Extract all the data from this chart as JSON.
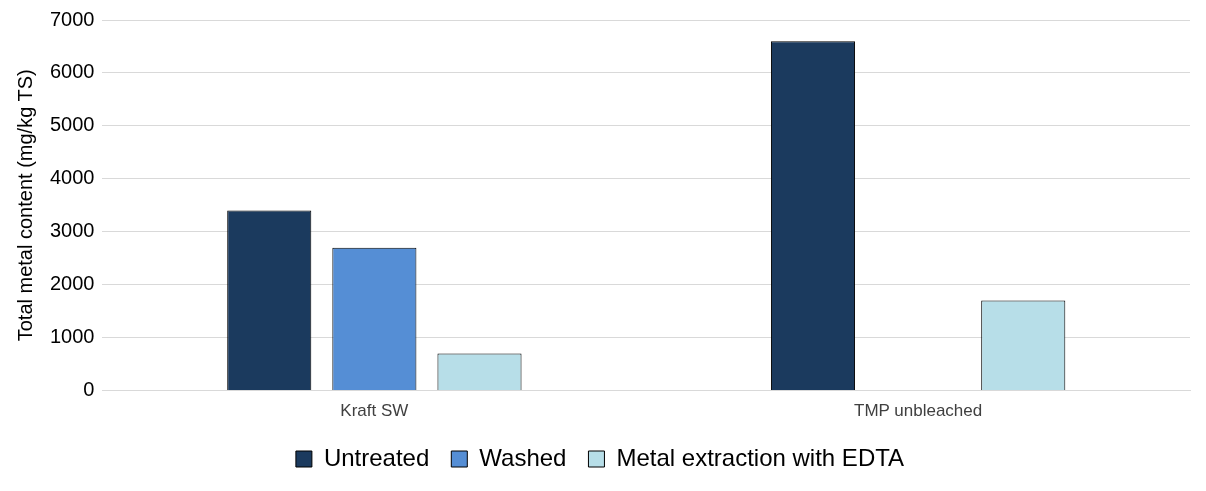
{
  "chart_data": {
    "type": "bar",
    "ylabel": "Total metal content (mg/kg TS)",
    "categories": [
      "Kraft SW",
      "TMP unbleached"
    ],
    "series": [
      {
        "name": "Untreated",
        "color": "#1b3a5e",
        "values": [
          3400,
          6600
        ]
      },
      {
        "name": "Washed",
        "color": "#558ed5",
        "values": [
          2700,
          null
        ]
      },
      {
        "name": "Metal extraction with EDTA",
        "color": "#b7dee8",
        "values": [
          700,
          1700
        ]
      }
    ],
    "ylim": [
      0,
      7000
    ],
    "yticks": [
      0,
      1000,
      2000,
      3000,
      4000,
      5000,
      6000,
      7000
    ],
    "grid": "y",
    "legend": "bottom"
  }
}
